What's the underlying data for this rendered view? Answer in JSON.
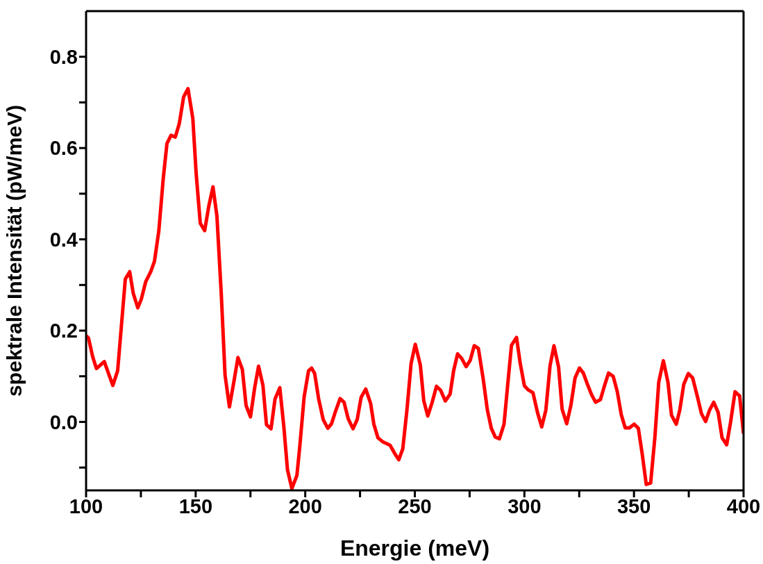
{
  "chart_data": {
    "type": "line",
    "xlabel": "Energie (meV)",
    "ylabel": "spektrale Intensität (pW/meV)",
    "xlim": [
      100,
      400
    ],
    "xticks": [
      100,
      {
        "value": 125,
        "label": null
      },
      150,
      {
        "value": 175,
        "label": null
      },
      200,
      {
        "value": 225,
        "label": null
      },
      250,
      {
        "value": 275,
        "label": null
      },
      300,
      {
        "value": 325,
        "label": null
      },
      350,
      {
        "value": 375,
        "label": null
      },
      400
    ],
    "ylim": [
      -0.15,
      0.9
    ],
    "yticks": [
      {
        "value": -0.1,
        "label": null
      },
      {
        "value": 0,
        "label": "0.0"
      },
      {
        "value": 0.1,
        "label": null
      },
      {
        "value": 0.2,
        "label": "0.2"
      },
      {
        "value": 0.3,
        "label": null
      },
      {
        "value": 0.4,
        "label": "0.4"
      },
      {
        "value": 0.5,
        "label": null
      },
      {
        "value": 0.6,
        "label": "0.6"
      },
      {
        "value": 0.7,
        "label": null
      },
      {
        "value": 0.8,
        "label": "0.8"
      }
    ],
    "legend": false,
    "marker": "none",
    "line_style": "solid",
    "series": [
      {
        "color": "#ff0000",
        "x": [
          100,
          101.1,
          103,
          104.7,
          108.3,
          112.2,
          114.4,
          117.9,
          119.9,
          121.5,
          123.6,
          125.2,
          127.2,
          129.5,
          131.2,
          133.2,
          135.2,
          136.9,
          138.8,
          140.7,
          142.5,
          144.5,
          146.5,
          148.7,
          150.2,
          152.1,
          154.1,
          156,
          157.9,
          159.7,
          161.7,
          163.4,
          165.4,
          167.4,
          169.3,
          171.3,
          173,
          175,
          177,
          178.7,
          180.7,
          182.3,
          184.4,
          186.2,
          188.4,
          190.2,
          191.9,
          193.9,
          196.2,
          197.5,
          199.5,
          201.5,
          202.9,
          204.3,
          206.1,
          208.2,
          210.3,
          212,
          213.8,
          215.9,
          217.7,
          219.6,
          221.8,
          223.7,
          225.5,
          227.6,
          229.8,
          231.3,
          233.2,
          235.5,
          238.7,
          240.8,
          242.7,
          244.5,
          246.4,
          248.3,
          250.2,
          252.5,
          254.1,
          255.9,
          257.8,
          259.9,
          261.8,
          263.9,
          266.1,
          267.7,
          269.5,
          271.4,
          273.4,
          275.3,
          277.1,
          279,
          281.2,
          283.1,
          284.9,
          286.7,
          288.6,
          290.7,
          292.3,
          294.1,
          296.4,
          298.1,
          300,
          301.8,
          303.9,
          306,
          307.9,
          309.8,
          311.7,
          313.5,
          315.6,
          317.2,
          319.3,
          321.2,
          323.1,
          325.1,
          326.9,
          328.8,
          330.7,
          332.5,
          334.7,
          336.4,
          338.4,
          340.5,
          342.4,
          344.2,
          346,
          347.9,
          350.1,
          352,
          353.8,
          355.6,
          357.6,
          359.5,
          361.3,
          363.4,
          365.5,
          367.1,
          369.3,
          370.9,
          372.7,
          374.8,
          376.8,
          378.9,
          380.8,
          382.7,
          384.5,
          386.4,
          388.4,
          390.2,
          392.3,
          394.1,
          396.1,
          398.2,
          400
        ],
        "values": [
          0.189,
          0.184,
          0.143,
          0.117,
          0.132,
          0.08,
          0.112,
          0.313,
          0.329,
          0.282,
          0.25,
          0.269,
          0.307,
          0.329,
          0.352,
          0.419,
          0.533,
          0.61,
          0.628,
          0.624,
          0.653,
          0.712,
          0.73,
          0.665,
          0.546,
          0.435,
          0.419,
          0.473,
          0.515,
          0.451,
          0.279,
          0.103,
          0.033,
          0.087,
          0.141,
          0.115,
          0.036,
          0.011,
          0.077,
          0.122,
          0.08,
          -0.006,
          -0.015,
          0.05,
          0.075,
          -0.009,
          -0.105,
          -0.146,
          -0.117,
          -0.054,
          0.055,
          0.112,
          0.118,
          0.106,
          0.051,
          0.005,
          -0.014,
          -0.004,
          0.023,
          0.051,
          0.043,
          0.007,
          -0.015,
          0.005,
          0.054,
          0.072,
          0.041,
          -0.005,
          -0.035,
          -0.044,
          -0.051,
          -0.069,
          -0.083,
          -0.059,
          0.026,
          0.128,
          0.17,
          0.125,
          0.046,
          0.013,
          0.041,
          0.078,
          0.069,
          0.046,
          0.061,
          0.112,
          0.149,
          0.139,
          0.121,
          0.135,
          0.167,
          0.161,
          0.094,
          0.026,
          -0.014,
          -0.033,
          -0.037,
          -0.005,
          0.077,
          0.168,
          0.185,
          0.128,
          0.079,
          0.07,
          0.064,
          0.02,
          -0.011,
          0.026,
          0.123,
          0.167,
          0.12,
          0.028,
          -0.004,
          0.036,
          0.096,
          0.118,
          0.107,
          0.082,
          0.059,
          0.043,
          0.049,
          0.077,
          0.107,
          0.1,
          0.066,
          0.016,
          -0.013,
          -0.013,
          -0.005,
          -0.014,
          -0.072,
          -0.137,
          -0.134,
          -0.036,
          0.087,
          0.134,
          0.087,
          0.015,
          -0.005,
          0.026,
          0.082,
          0.106,
          0.096,
          0.056,
          0.018,
          0.001,
          0.026,
          0.043,
          0.021,
          -0.035,
          -0.05,
          0,
          0.066,
          0.057,
          -0.026
        ]
      }
    ]
  }
}
